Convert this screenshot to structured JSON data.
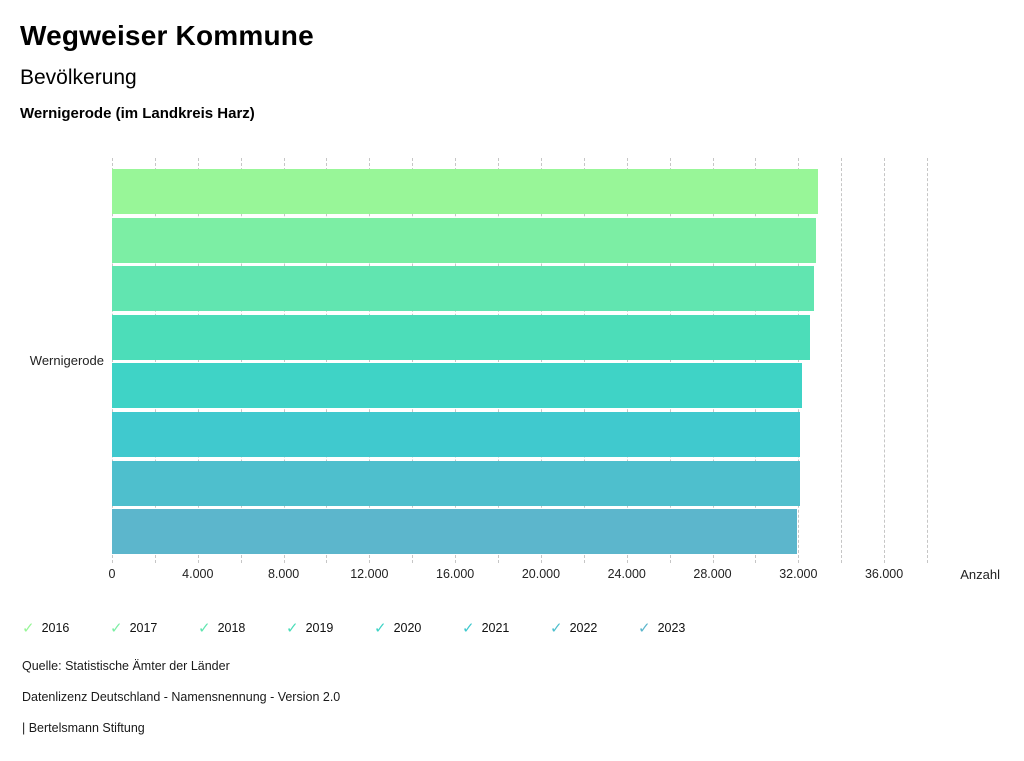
{
  "header": {
    "title": "Wegweiser Kommune",
    "subtitle": "Bevölkerung",
    "location": "Wernigerode (im Landkreis Harz)"
  },
  "chart_data": {
    "type": "bar",
    "orientation": "horizontal",
    "title": "Bevölkerung – Wernigerode (im Landkreis Harz)",
    "category": "Wernigerode",
    "series": [
      {
        "name": "2016",
        "value": 32930,
        "color": "#98F698"
      },
      {
        "name": "2017",
        "value": 32820,
        "color": "#7CEEA4"
      },
      {
        "name": "2018",
        "value": 32740,
        "color": "#61E5B0"
      },
      {
        "name": "2019",
        "value": 32530,
        "color": "#4CDDB9"
      },
      {
        "name": "2020",
        "value": 32170,
        "color": "#3FD3C6"
      },
      {
        "name": "2021",
        "value": 32070,
        "color": "#40C9CE"
      },
      {
        "name": "2022",
        "value": 32080,
        "color": "#4EBFCD"
      },
      {
        "name": "2023",
        "value": 31920,
        "color": "#5CB6CC"
      }
    ],
    "xlabel": "Anzahl",
    "ylabel": "",
    "xlim": [
      0,
      38000
    ],
    "x_major_ticks": [
      0,
      4000,
      8000,
      12000,
      16000,
      20000,
      24000,
      28000,
      32000,
      36000
    ],
    "x_major_tick_labels": [
      "0",
      "4.000",
      "8.000",
      "12.000",
      "16.000",
      "20.000",
      "24.000",
      "28.000",
      "32.000",
      "36.000"
    ],
    "x_minor_step": 2000,
    "grid": "vertical-dashed",
    "legend_position": "bottom",
    "legend_check_glyph": "✓"
  },
  "footer": {
    "lines": [
      "Quelle: Statistische Ämter der Länder",
      "Datenlizenz Deutschland - Namensnennung - Version 2.0",
      "| Bertelsmann Stiftung"
    ]
  }
}
